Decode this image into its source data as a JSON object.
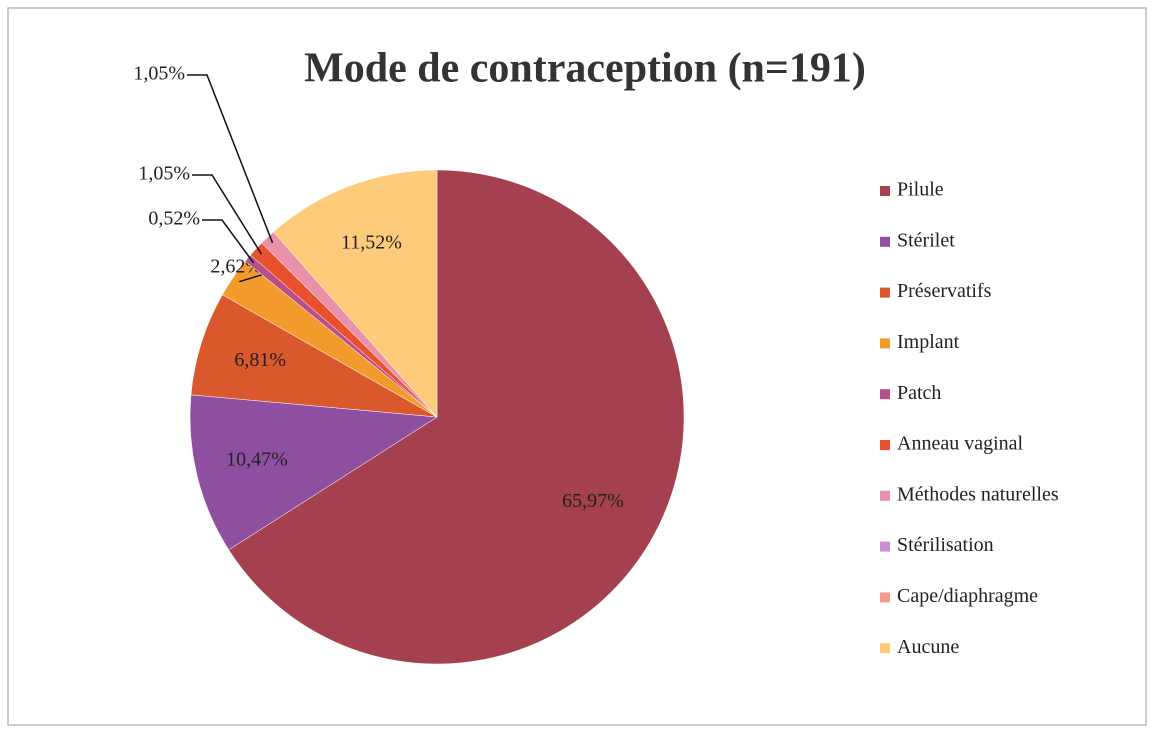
{
  "chart_data": {
    "type": "pie",
    "title": "Mode de contraception (n=191)",
    "categories": [
      "Pilule",
      "Stérilet",
      "Préservatifs",
      "Implant",
      "Patch",
      "Anneau vaginal",
      "Méthodes naturelles",
      "Stérilisation",
      "Cape/diaphragme",
      "Aucune"
    ],
    "values": [
      65.97,
      10.47,
      6.81,
      2.62,
      0.52,
      1.05,
      1.05,
      0,
      0,
      11.52
    ],
    "value_labels": [
      "65,97%",
      "10,47%",
      "6,81%",
      "2,62%",
      "0,52%",
      "1,05%",
      "1,05%",
      null,
      null,
      "11,52%"
    ],
    "colors": [
      "#a5404f",
      "#8e4fa0",
      "#d9582c",
      "#f39a2c",
      "#b84f88",
      "#e8502e",
      "#e891a8",
      "#c98fd0",
      "#f19a8d",
      "#fdcb7a"
    ],
    "legend": "right"
  }
}
